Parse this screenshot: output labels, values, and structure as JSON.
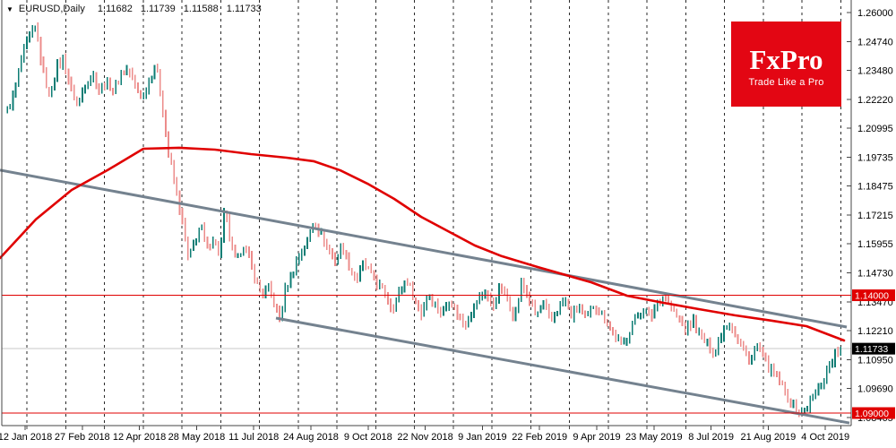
{
  "header": {
    "symbol": "EURUSD,Daily",
    "open": "1.11682",
    "high": "1.11739",
    "low": "1.11588",
    "close": "1.11733"
  },
  "logo": {
    "title": "FxPro",
    "tagline": "Trade Like a Pro",
    "bg": "#e30613",
    "text_color": "#ffffff"
  },
  "colors": {
    "bar_up": "#0e7d74",
    "bar_down": "#ec8c8b",
    "ma_line": "#e00000",
    "level_line": "#e00000",
    "trendline": "#74828f",
    "current_price_line": "#c9c9c9",
    "grid": "#2a2a2a",
    "axis_border": "#444444",
    "axis_text": "#000000",
    "level_label_bg": "#e00000",
    "current_label_bg": "#000000",
    "label_text": "#ffffff"
  },
  "axis": {
    "price_labels": [
      "1.26000",
      "1.24740",
      "1.23480",
      "1.22220",
      "1.20995",
      "1.19735",
      "1.18475",
      "1.17215",
      "1.15955",
      "1.14730",
      "1.13470",
      "1.12210",
      "1.10950",
      "1.09690",
      "1.08465"
    ],
    "date_labels": [
      "12 Jan 2018",
      "27 Feb 2018",
      "12 Apr 2018",
      "28 May 2018",
      "11 Jul 2018",
      "24 Aug 2018",
      "9 Oct 2018",
      "22 Nov 2018",
      "9 Jan 2019",
      "22 Feb 2019",
      "9 Apr 2019",
      "23 May 2019",
      "8 Jul 2019",
      "21 Aug 2019",
      "4 Oct 2019"
    ]
  },
  "levels": {
    "resistance": {
      "value": 1.14,
      "label": "1.14000"
    },
    "support": {
      "value": 1.09,
      "label": "1.09000"
    },
    "current": {
      "value": 1.11733,
      "label": "1.11733"
    }
  },
  "chart_data": {
    "type": "bar",
    "subtype": "ohlc_bars",
    "symbol": "EURUSD",
    "timeframe": "Daily",
    "title": "EURUSD,Daily",
    "last_bar": {
      "open": 1.11682,
      "high": 1.11739,
      "low": 1.11588,
      "close": 1.11733
    },
    "ylim": [
      1.08465,
      1.26
    ],
    "y_ticks": [
      1.26,
      1.2474,
      1.2348,
      1.2222,
      1.20995,
      1.19735,
      1.18475,
      1.17215,
      1.15955,
      1.1473,
      1.1347,
      1.1221,
      1.1095,
      1.0969,
      1.08465
    ],
    "x_tick_labels": [
      "12 Jan 2018",
      "27 Feb 2018",
      "12 Apr 2018",
      "28 May 2018",
      "11 Jul 2018",
      "24 Aug 2018",
      "9 Oct 2018",
      "22 Nov 2018",
      "9 Jan 2019",
      "22 Feb 2019",
      "9 Apr 2019",
      "23 May 2019",
      "8 Jul 2019",
      "21 Aug 2019",
      "4 Oct 2019"
    ],
    "grid": "vertical-dashed",
    "legend": "none",
    "horizontal_levels": [
      1.14,
      1.09
    ],
    "current_price": 1.11733,
    "close_path": [
      [
        8,
        1.2185
      ],
      [
        16,
        1.2255
      ],
      [
        24,
        1.2405
      ],
      [
        32,
        1.249
      ],
      [
        40,
        1.2535
      ],
      [
        47,
        1.237
      ],
      [
        55,
        1.224
      ],
      [
        63,
        1.237
      ],
      [
        71,
        1.2405
      ],
      [
        79,
        1.2275
      ],
      [
        87,
        1.221
      ],
      [
        95,
        1.23
      ],
      [
        103,
        1.234
      ],
      [
        111,
        1.227
      ],
      [
        119,
        1.2305
      ],
      [
        127,
        1.227
      ],
      [
        135,
        1.234
      ],
      [
        143,
        1.236
      ],
      [
        151,
        1.229
      ],
      [
        159,
        1.2235
      ],
      [
        167,
        1.2325
      ],
      [
        174,
        1.238
      ],
      [
        181,
        1.221
      ],
      [
        188,
        1.2
      ],
      [
        196,
        1.1855
      ],
      [
        203,
        1.172
      ],
      [
        210,
        1.155
      ],
      [
        217,
        1.1625
      ],
      [
        224,
        1.17
      ],
      [
        231,
        1.159
      ],
      [
        238,
        1.165
      ],
      [
        245,
        1.157
      ],
      [
        251,
        1.177
      ],
      [
        257,
        1.162
      ],
      [
        264,
        1.1535
      ],
      [
        271,
        1.162
      ],
      [
        278,
        1.155
      ],
      [
        285,
        1.147
      ],
      [
        292,
        1.1405
      ],
      [
        299,
        1.1435
      ],
      [
        306,
        1.137
      ],
      [
        312,
        1.1295
      ],
      [
        318,
        1.1415
      ],
      [
        326,
        1.15
      ],
      [
        334,
        1.157
      ],
      [
        342,
        1.162
      ],
      [
        350,
        1.172
      ],
      [
        358,
        1.166
      ],
      [
        366,
        1.16
      ],
      [
        374,
        1.1545
      ],
      [
        382,
        1.161
      ],
      [
        390,
        1.152
      ],
      [
        398,
        1.1465
      ],
      [
        406,
        1.1535
      ],
      [
        414,
        1.1485
      ],
      [
        422,
        1.1445
      ],
      [
        430,
        1.14
      ],
      [
        438,
        1.134
      ],
      [
        446,
        1.142
      ],
      [
        454,
        1.1465
      ],
      [
        462,
        1.139
      ],
      [
        470,
        1.132
      ],
      [
        478,
        1.1415
      ],
      [
        486,
        1.136
      ],
      [
        494,
        1.132
      ],
      [
        502,
        1.139
      ],
      [
        510,
        1.1325
      ],
      [
        518,
        1.127
      ],
      [
        526,
        1.133
      ],
      [
        534,
        1.1385
      ],
      [
        542,
        1.142
      ],
      [
        550,
        1.134
      ],
      [
        558,
        1.144
      ],
      [
        566,
        1.138
      ],
      [
        574,
        1.131
      ],
      [
        582,
        1.145
      ],
      [
        590,
        1.139
      ],
      [
        598,
        1.131
      ],
      [
        606,
        1.136
      ],
      [
        614,
        1.129
      ],
      [
        622,
        1.134
      ],
      [
        630,
        1.138
      ],
      [
        638,
        1.131
      ],
      [
        646,
        1.135
      ],
      [
        654,
        1.129
      ],
      [
        662,
        1.136
      ],
      [
        670,
        1.133
      ],
      [
        678,
        1.128
      ],
      [
        686,
        1.123
      ],
      [
        694,
        1.118
      ],
      [
        702,
        1.125
      ],
      [
        710,
        1.131
      ],
      [
        718,
        1.134
      ],
      [
        726,
        1.13
      ],
      [
        734,
        1.138
      ],
      [
        742,
        1.1398
      ],
      [
        750,
        1.134
      ],
      [
        758,
        1.129
      ],
      [
        766,
        1.125
      ],
      [
        774,
        1.129
      ],
      [
        782,
        1.122
      ],
      [
        790,
        1.119
      ],
      [
        798,
        1.116
      ],
      [
        806,
        1.125
      ],
      [
        814,
        1.129
      ],
      [
        822,
        1.122
      ],
      [
        830,
        1.116
      ],
      [
        838,
        1.113
      ],
      [
        846,
        1.119
      ],
      [
        854,
        1.111
      ],
      [
        862,
        1.107
      ],
      [
        870,
        1.103
      ],
      [
        878,
        1.097
      ],
      [
        886,
        1.093
      ],
      [
        894,
        1.09
      ],
      [
        902,
        1.093
      ],
      [
        910,
        1.099
      ],
      [
        918,
        1.104
      ],
      [
        926,
        1.111
      ],
      [
        934,
        1.116
      ],
      [
        940,
        1.1173
      ]
    ],
    "moving_average": {
      "name": "MA",
      "color": "#e00000",
      "points": [
        [
          0,
          1.1558
        ],
        [
          40,
          1.1722
        ],
        [
          80,
          1.1847
        ],
        [
          120,
          1.1931
        ],
        [
          160,
          1.2022
        ],
        [
          200,
          1.2026
        ],
        [
          240,
          1.2018
        ],
        [
          280,
          1.1999
        ],
        [
          320,
          1.1984
        ],
        [
          350,
          1.1969
        ],
        [
          380,
          1.193
        ],
        [
          410,
          1.1874
        ],
        [
          440,
          1.1809
        ],
        [
          470,
          1.1733
        ],
        [
          500,
          1.1672
        ],
        [
          530,
          1.1611
        ],
        [
          560,
          1.1566
        ],
        [
          600,
          1.152
        ],
        [
          660,
          1.1455
        ],
        [
          700,
          1.1398
        ],
        [
          740,
          1.1368
        ],
        [
          780,
          1.1341
        ],
        [
          820,
          1.1315
        ],
        [
          860,
          1.1293
        ],
        [
          900,
          1.1269
        ],
        [
          942,
          1.1208
        ]
      ]
    },
    "trend_channel": {
      "upper": [
        [
          0,
          1.1931
        ],
        [
          945,
          1.1265
        ]
      ],
      "lower": [
        [
          308,
          1.1303
        ],
        [
          948,
          1.0858
        ]
      ]
    }
  }
}
